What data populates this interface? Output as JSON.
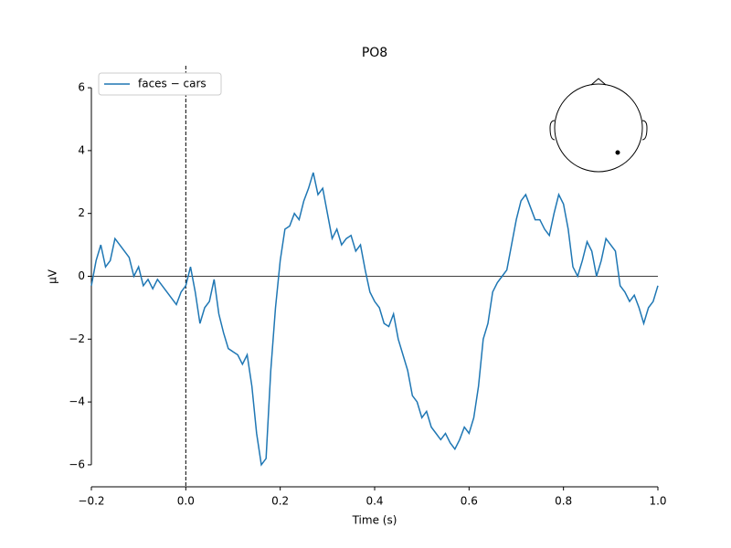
{
  "chart_data": {
    "type": "line",
    "title": "PO8",
    "xlabel": "Time (s)",
    "ylabel": "µV",
    "x": [
      -0.2,
      -0.19,
      -0.18,
      -0.17,
      -0.16,
      -0.15,
      -0.14,
      -0.13,
      -0.12,
      -0.11,
      -0.1,
      -0.09,
      -0.08,
      -0.07,
      -0.06,
      -0.05,
      -0.04,
      -0.03,
      -0.02,
      -0.01,
      0,
      0.01,
      0.02,
      0.03,
      0.04,
      0.05,
      0.06,
      0.07,
      0.08,
      0.09,
      0.1,
      0.11,
      0.12,
      0.13,
      0.14,
      0.15,
      0.16,
      0.17,
      0.18,
      0.19,
      0.2,
      0.21,
      0.22,
      0.23,
      0.24,
      0.25,
      0.26,
      0.27,
      0.28,
      0.29,
      0.3,
      0.31,
      0.32,
      0.33,
      0.34,
      0.35,
      0.36,
      0.37,
      0.38,
      0.39,
      0.4,
      0.41,
      0.42,
      0.43,
      0.44,
      0.45,
      0.46,
      0.47,
      0.48,
      0.49,
      0.5,
      0.51,
      0.52,
      0.53,
      0.54,
      0.55,
      0.56,
      0.57,
      0.58,
      0.59,
      0.6,
      0.61,
      0.62,
      0.63,
      0.64,
      0.65,
      0.66,
      0.67,
      0.68,
      0.69,
      0.7,
      0.71,
      0.72,
      0.73,
      0.74,
      0.75,
      0.76,
      0.77,
      0.78,
      0.79,
      0.8,
      0.81,
      0.82,
      0.83,
      0.84,
      0.85,
      0.86,
      0.87,
      0.88,
      0.89,
      0.9,
      0.91,
      0.92,
      0.93,
      0.94,
      0.95,
      0.96,
      0.97,
      0.98,
      0.99,
      1.0
    ],
    "series": [
      {
        "name": "faces − cars",
        "color": "#1f77b4",
        "values": [
          -0.3,
          0.5,
          1.0,
          0.3,
          0.5,
          1.2,
          1.0,
          0.8,
          0.6,
          0.0,
          0.3,
          -0.3,
          -0.1,
          -0.4,
          -0.1,
          -0.3,
          -0.5,
          -0.7,
          -0.9,
          -0.5,
          -0.3,
          0.3,
          -0.5,
          -1.5,
          -1.0,
          -0.8,
          -0.1,
          -1.2,
          -1.8,
          -2.3,
          -2.4,
          -2.5,
          -2.8,
          -2.5,
          -3.5,
          -5.0,
          -6.0,
          -5.8,
          -3.0,
          -1.0,
          0.5,
          1.5,
          1.6,
          2.0,
          1.8,
          2.4,
          2.8,
          3.3,
          2.6,
          2.8,
          2.0,
          1.2,
          1.5,
          1.0,
          1.2,
          1.3,
          0.8,
          1.0,
          0.2,
          -0.5,
          -0.8,
          -1.0,
          -1.5,
          -1.6,
          -1.2,
          -2.0,
          -2.5,
          -3.0,
          -3.8,
          -4.0,
          -4.5,
          -4.3,
          -4.8,
          -5.0,
          -5.2,
          -5.0,
          -5.3,
          -5.5,
          -5.2,
          -4.8,
          -5.0,
          -4.5,
          -3.5,
          -2.0,
          -1.5,
          -0.5,
          -0.2,
          0.0,
          0.2,
          1.0,
          1.8,
          2.4,
          2.6,
          2.2,
          1.8,
          1.8,
          1.5,
          1.3,
          2.0,
          2.6,
          2.3,
          1.5,
          0.3,
          0.0,
          0.5,
          1.1,
          0.8,
          0.0,
          0.5,
          1.2,
          1.0,
          0.8,
          -0.3,
          -0.5,
          -0.8,
          -0.6,
          -1.0,
          -1.5,
          -1.0,
          -0.8,
          -0.3
        ]
      }
    ],
    "xlim": [
      -0.2,
      1.0
    ],
    "ylim": [
      -6.7,
      6.7
    ],
    "xticks": [
      {
        "value": -0.2,
        "label": "−0.2"
      },
      {
        "value": 0,
        "label": "0.0"
      },
      0.2,
      0.4,
      0.6,
      0.8,
      {
        "value": 1.0,
        "label": "1.0"
      }
    ],
    "yticks": [
      {
        "value": -6,
        "label": "−6"
      },
      {
        "value": -4,
        "label": "−4"
      },
      {
        "value": -2,
        "label": "−2"
      },
      0,
      2,
      4,
      6
    ],
    "vlines": [
      0
    ],
    "hlines": [
      0
    ],
    "legend": "upper left"
  }
}
